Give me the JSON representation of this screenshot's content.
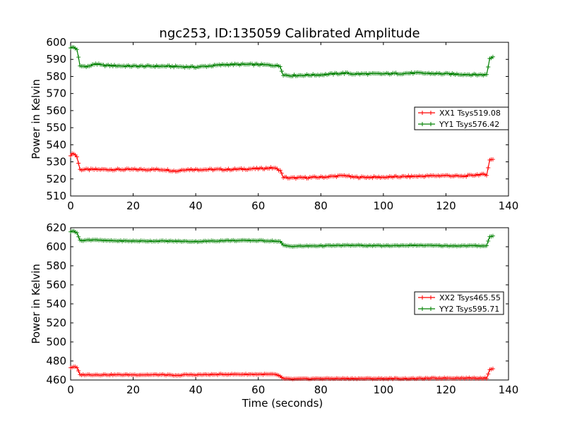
{
  "figure": {
    "title": "ngc253, ID:135059 Calibrated Amplitude"
  },
  "chart_data": [
    {
      "type": "line",
      "title": "ngc253, ID:135059 Calibrated Amplitude",
      "xlabel": "",
      "ylabel": "Power in Kelvin",
      "xlim": [
        0,
        140
      ],
      "ylim": [
        510,
        600
      ],
      "xticks": [
        0,
        20,
        40,
        60,
        80,
        100,
        120,
        140
      ],
      "yticks": [
        510,
        520,
        530,
        540,
        550,
        560,
        570,
        580,
        590,
        600
      ],
      "legend_position": "right",
      "grid": false,
      "series": [
        {
          "name": "XX1 Tsys519.08",
          "color": "#ff0000",
          "marker": "+",
          "x": [
            0,
            1,
            2,
            3,
            6,
            10,
            20,
            30,
            34,
            36,
            40,
            50,
            60,
            65,
            67,
            68,
            70,
            80,
            88,
            90,
            100,
            110,
            120,
            125,
            128,
            130,
            133,
            134,
            135
          ],
          "y": [
            534,
            535,
            533,
            525.5,
            525.5,
            525.5,
            525.5,
            525.5,
            524.5,
            525.5,
            525.5,
            525.5,
            526,
            526.5,
            525,
            521,
            520.5,
            521,
            522,
            521,
            521,
            521.5,
            522,
            521.5,
            522,
            522.5,
            522.5,
            531,
            531.5
          ]
        },
        {
          "name": "YY1 Tsys576.42",
          "color": "#008000",
          "marker": "+",
          "x": [
            0,
            1,
            2,
            3,
            6,
            8,
            10,
            20,
            30,
            40,
            50,
            60,
            65,
            67,
            68,
            70,
            80,
            88,
            90,
            100,
            110,
            120,
            130,
            133,
            134,
            135
          ],
          "y": [
            597,
            597,
            596,
            586,
            586,
            587.5,
            586.5,
            586,
            586,
            585.5,
            587,
            587,
            586.5,
            586,
            581,
            580.5,
            581,
            582,
            581.5,
            581.5,
            582,
            581.5,
            581,
            581,
            590.5,
            591.5
          ]
        }
      ]
    },
    {
      "type": "line",
      "title": "",
      "xlabel": "Time (seconds)",
      "ylabel": "Power in Kelvin",
      "xlim": [
        0,
        140
      ],
      "ylim": [
        460,
        620
      ],
      "xticks": [
        0,
        20,
        40,
        60,
        80,
        100,
        120,
        140
      ],
      "yticks": [
        460,
        480,
        500,
        520,
        540,
        560,
        580,
        600,
        620
      ],
      "legend_position": "right",
      "grid": false,
      "series": [
        {
          "name": "XX2 Tsys465.55",
          "color": "#ff0000",
          "marker": "+",
          "x": [
            0,
            1,
            2,
            3,
            10,
            20,
            30,
            34,
            36,
            40,
            50,
            60,
            65,
            67,
            68,
            70,
            80,
            90,
            100,
            110,
            120,
            130,
            133,
            134,
            135
          ],
          "y": [
            473,
            474,
            473,
            465.5,
            465.5,
            465.5,
            465.5,
            464.5,
            465.5,
            465.5,
            466,
            466,
            466,
            464,
            461.5,
            461,
            461.5,
            461.5,
            461.5,
            461.5,
            462,
            462,
            462,
            471,
            472
          ]
        },
        {
          "name": "YY2 Tsys595.71",
          "color": "#008000",
          "marker": "+",
          "x": [
            0,
            1,
            2,
            3,
            8,
            10,
            20,
            30,
            40,
            50,
            60,
            65,
            67,
            68,
            70,
            80,
            90,
            100,
            110,
            120,
            130,
            133,
            134,
            135
          ],
          "y": [
            616,
            616.5,
            615,
            606.5,
            607.5,
            606.5,
            606,
            606,
            605.5,
            606.5,
            606.5,
            606,
            605.5,
            601.5,
            600.5,
            601,
            601.5,
            601,
            601.5,
            601,
            601,
            601,
            610.5,
            611.5
          ]
        }
      ]
    }
  ]
}
